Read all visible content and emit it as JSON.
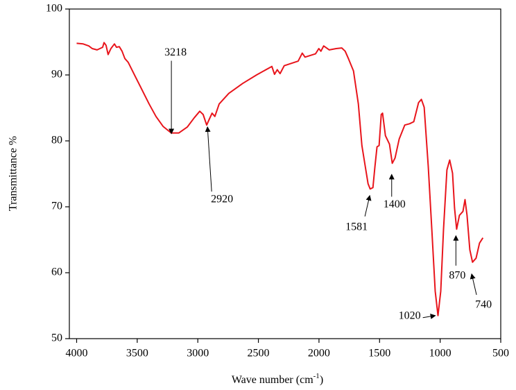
{
  "chart_data": {
    "type": "line",
    "xlabel": [
      "Wave number (cm",
      "-1",
      ")"
    ],
    "ylabel": "Transmittance %",
    "x": [
      4000,
      3946,
      3900,
      3871,
      3831,
      3785,
      3774,
      3757,
      3740,
      3717,
      3688,
      3671,
      3648,
      3625,
      3602,
      3574,
      3517,
      3459,
      3402,
      3345,
      3287,
      3219,
      3156,
      3087,
      3030,
      2984,
      2956,
      2927,
      2905,
      2882,
      2859,
      2824,
      2744,
      2630,
      2515,
      2389,
      2367,
      2344,
      2321,
      2287,
      2172,
      2138,
      2115,
      2029,
      2001,
      1984,
      1961,
      1915,
      1858,
      1812,
      1784,
      1755,
      1715,
      1675,
      1646,
      1618,
      1595,
      1578,
      1555,
      1538,
      1521,
      1504,
      1486,
      1475,
      1452,
      1418,
      1395,
      1372,
      1338,
      1292,
      1252,
      1218,
      1178,
      1155,
      1132,
      1098,
      1069,
      1041,
      1018,
      995,
      972,
      944,
      921,
      898,
      881,
      864,
      841,
      812,
      795,
      778,
      755,
      733,
      704,
      675,
      647
    ],
    "series": [
      {
        "color": "#e8141b",
        "values": [
          94.8,
          94.7,
          94.4,
          94.0,
          93.8,
          94.2,
          94.9,
          94.5,
          93.1,
          94.0,
          94.7,
          94.2,
          94.3,
          93.6,
          92.5,
          91.9,
          89.8,
          87.7,
          85.6,
          83.7,
          82.2,
          81.2,
          81.2,
          82.1,
          83.5,
          84.5,
          84.0,
          82.4,
          83.3,
          84.2,
          83.7,
          85.6,
          87.2,
          88.7,
          90.0,
          91.3,
          90.1,
          90.8,
          90.2,
          91.4,
          92.1,
          93.3,
          92.7,
          93.2,
          94.0,
          93.6,
          94.4,
          93.8,
          94.0,
          94.1,
          93.6,
          92.4,
          90.6,
          85.6,
          79.3,
          76.1,
          73.5,
          72.7,
          72.9,
          76.1,
          79.1,
          79.3,
          84.0,
          84.2,
          80.8,
          79.5,
          76.6,
          77.4,
          80.3,
          82.4,
          82.6,
          82.9,
          85.8,
          86.3,
          85.1,
          76.1,
          66.6,
          57.2,
          53.5,
          57.2,
          66.6,
          75.6,
          77.1,
          75.1,
          69.8,
          66.6,
          68.7,
          69.3,
          71.1,
          68.7,
          63.5,
          61.6,
          62.2,
          64.5,
          65.3
        ]
      }
    ],
    "xlim": [
      4060,
      500
    ],
    "xticks": [
      4000,
      3500,
      3000,
      2500,
      2000,
      1500,
      1000,
      500
    ],
    "ylim": [
      50,
      100
    ],
    "yticks": [
      50,
      60,
      70,
      80,
      90,
      100
    ],
    "annotations": [
      {
        "label": "3218",
        "x": 3218,
        "y": 81.1
      },
      {
        "label": "2920",
        "x": 2920,
        "y": 82.1
      },
      {
        "label": "1581",
        "x": 1581,
        "y": 71.7
      },
      {
        "label": "1400",
        "x": 1400,
        "y": 74.9
      },
      {
        "label": "1020",
        "x": 1040,
        "y": 53.5
      },
      {
        "label": "870",
        "x": 870,
        "y": 65.6
      },
      {
        "label": "740",
        "x": 740,
        "y": 59.8
      }
    ]
  }
}
